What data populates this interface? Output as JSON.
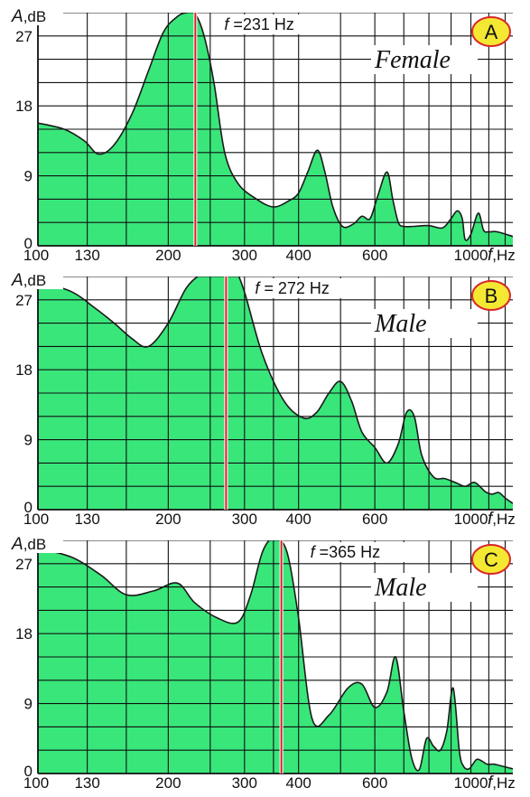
{
  "colors": {
    "fill": "#39e67a",
    "stroke": "#1a1a1a",
    "marker": "#e8172b",
    "badge_fill": "#f4e832",
    "badge_stroke": "#d9262a"
  },
  "chart_data": [
    {
      "type": "area",
      "panel": "A",
      "gender": "Female",
      "frequency_label": "f =231 Hz",
      "marker_x": 231,
      "y_axis_label": "A,dB",
      "x_axis_label": "f,Hz",
      "x_scale": "log",
      "xlim": [
        100,
        1250
      ],
      "ylim": [
        0,
        30
      ],
      "x_tick_labels": [
        100,
        130,
        200,
        300,
        400,
        600,
        1000
      ],
      "y_tick_labels": [
        0,
        9,
        18,
        27
      ],
      "x": [
        100,
        115,
        128,
        138,
        150,
        165,
        180,
        195,
        210,
        221,
        231,
        242,
        255,
        270,
        290,
        320,
        350,
        380,
        400,
        420,
        442,
        460,
        480,
        505,
        535,
        560,
        585,
        610,
        640,
        660,
        680,
        700,
        740,
        800,
        860,
        900,
        930,
        955,
        970,
        1000,
        1040,
        1070,
        1100,
        1150,
        1250
      ],
      "y": [
        15.8,
        15.0,
        13.5,
        11.8,
        13.0,
        17.0,
        22.5,
        27.5,
        29.5,
        30.0,
        29.8,
        27.0,
        21.0,
        12.0,
        8.0,
        6.0,
        5.0,
        5.8,
        6.8,
        9.5,
        12.3,
        9.5,
        5.0,
        2.5,
        2.8,
        3.8,
        3.5,
        6.5,
        9.5,
        6.0,
        3.0,
        2.5,
        2.5,
        2.6,
        2.3,
        3.5,
        4.5,
        3.5,
        0.8,
        1.5,
        4.2,
        2.0,
        1.8,
        1.8,
        1.2
      ]
    },
    {
      "type": "area",
      "panel": "B",
      "gender": "Male",
      "frequency_label": "f = 272 Hz",
      "marker_x": 272,
      "y_axis_label": "A,dB",
      "x_axis_label": "f,Hz",
      "x_scale": "log",
      "xlim": [
        100,
        1250
      ],
      "ylim": [
        0,
        30
      ],
      "x_tick_labels": [
        100,
        130,
        200,
        300,
        400,
        600,
        1000
      ],
      "y_tick_labels": [
        0,
        9,
        18,
        27
      ],
      "x": [
        100,
        120,
        135,
        150,
        165,
        180,
        200,
        220,
        240,
        260,
        272,
        285,
        300,
        330,
        370,
        410,
        440,
        470,
        500,
        530,
        560,
        600,
        640,
        680,
        710,
        740,
        770,
        820,
        870,
        920,
        970,
        1020,
        1080,
        1120,
        1160,
        1200,
        1250
      ],
      "y": [
        29.5,
        28.0,
        26.0,
        24.0,
        22.0,
        21.0,
        24.0,
        28.5,
        30.5,
        32.0,
        32.0,
        31.0,
        28.0,
        20.0,
        14.0,
        11.8,
        12.5,
        15.0,
        16.5,
        14.0,
        10.0,
        8.0,
        6.0,
        8.5,
        12.5,
        12.0,
        7.0,
        4.2,
        4.0,
        3.5,
        3.0,
        3.5,
        2.3,
        2.0,
        2.2,
        1.5,
        0.8
      ]
    },
    {
      "type": "area",
      "panel": "C",
      "gender": "Male",
      "frequency_label": "f =365 Hz",
      "marker_x": 365,
      "y_axis_label": "A,dB",
      "x_axis_label": "f,Hz",
      "x_scale": "log",
      "xlim": [
        100,
        1250
      ],
      "ylim": [
        0,
        30
      ],
      "x_tick_labels": [
        100,
        130,
        200,
        300,
        400,
        600,
        1000
      ],
      "y_tick_labels": [
        0,
        9,
        18,
        27
      ],
      "x": [
        100,
        120,
        140,
        160,
        185,
        210,
        230,
        260,
        290,
        310,
        330,
        350,
        365,
        380,
        400,
        430,
        470,
        520,
        560,
        600,
        640,
        670,
        700,
        730,
        760,
        790,
        820,
        850,
        880,
        910,
        940,
        960,
        990,
        1030,
        1060,
        1090,
        1130,
        1170,
        1210,
        1250
      ],
      "y": [
        29.0,
        27.8,
        25.5,
        23.0,
        23.5,
        24.5,
        22.0,
        20.0,
        19.5,
        23.0,
        28.5,
        30.5,
        30.0,
        27.5,
        20.0,
        7.0,
        7.5,
        11.0,
        11.5,
        8.5,
        10.5,
        15.0,
        8.0,
        2.0,
        0.5,
        4.5,
        3.5,
        3.0,
        5.5,
        11.0,
        3.0,
        1.0,
        0.6,
        1.8,
        1.6,
        1.2,
        1.2,
        1.0,
        0.8,
        0.6
      ]
    }
  ]
}
